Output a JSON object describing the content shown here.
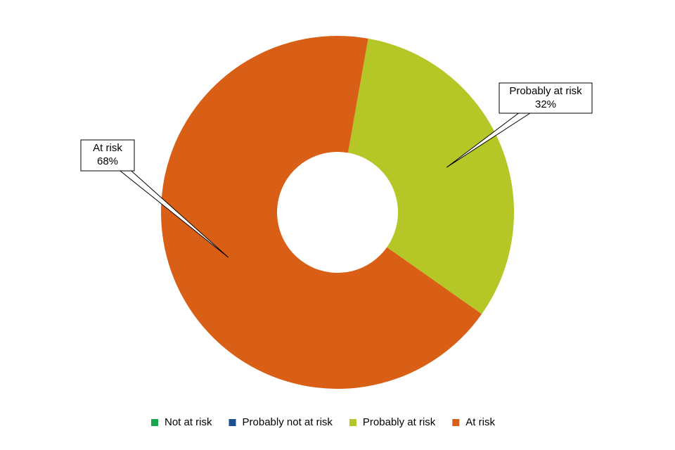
{
  "chart_data": {
    "type": "donut",
    "categories": [
      "Not at risk",
      "Probably not at risk",
      "Probably at risk",
      "At risk"
    ],
    "values": [
      0,
      0,
      32,
      68
    ],
    "value_labels": [
      null,
      null,
      "32%",
      "68%"
    ],
    "colors": [
      "#17a64b",
      "#1c4f8f",
      "#b5c627",
      "#d95f16"
    ],
    "legend": "bottom"
  }
}
